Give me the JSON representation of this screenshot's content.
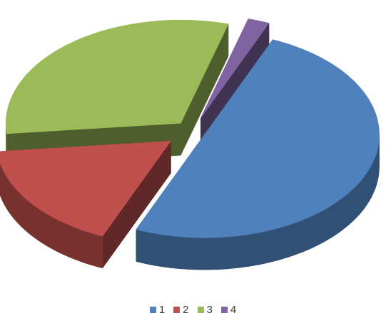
{
  "chart_data": {
    "type": "pie",
    "style": "3d-exploded",
    "categories": [
      "1",
      "2",
      "3",
      "4"
    ],
    "values": [
      50,
      17,
      31,
      2
    ],
    "colors": [
      "#4f81bd",
      "#c0504d",
      "#9bbb59",
      "#8064a2"
    ],
    "legend": {
      "position": "bottom",
      "labels": [
        "1",
        "2",
        "3",
        "4"
      ]
    }
  }
}
